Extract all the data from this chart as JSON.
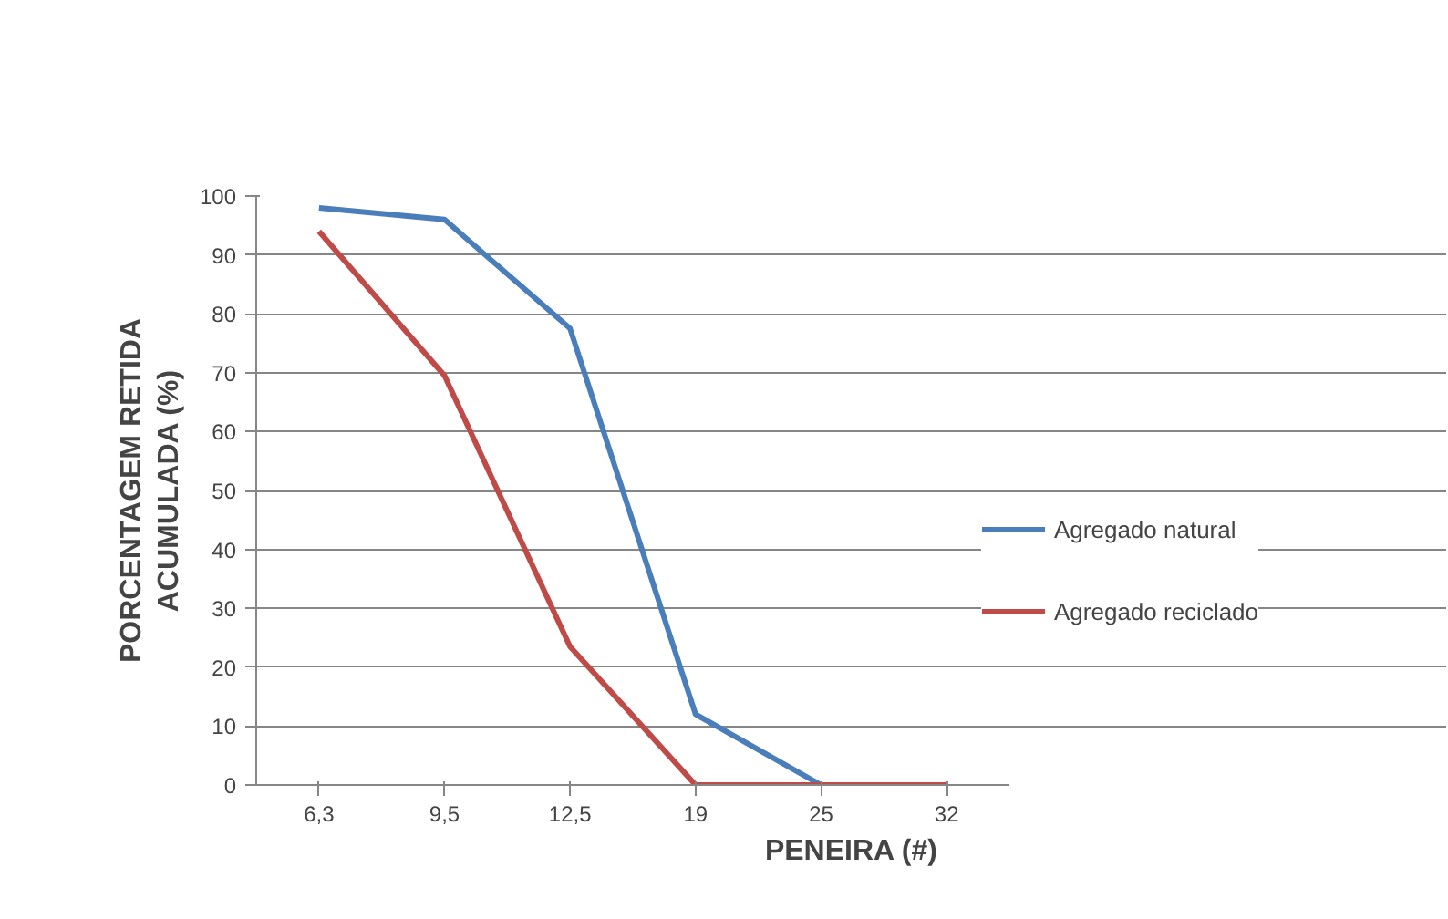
{
  "chart_data": {
    "type": "line",
    "xlabel": "PENEIRA (#)",
    "ylabel": "PORCENTAGEM RETIDA\nACUMULADA (%)",
    "categories": [
      "6,3",
      "9,5",
      "12,5",
      "19",
      "25",
      "32"
    ],
    "series": [
      {
        "name": "Agregado natural",
        "color": "#4a7ebb",
        "values": [
          98,
          96,
          77.5,
          12,
          0,
          null
        ]
      },
      {
        "name": "Agregado reciclado",
        "color": "#be4b48",
        "values": [
          94,
          69.5,
          23.5,
          0,
          0,
          0
        ]
      }
    ],
    "ylim": [
      0,
      100
    ],
    "yticks": [
      0,
      10,
      20,
      30,
      40,
      50,
      60,
      70,
      80,
      90,
      100
    ],
    "grid": "y",
    "legend": "right",
    "marker": "none",
    "line_style": "solid"
  }
}
